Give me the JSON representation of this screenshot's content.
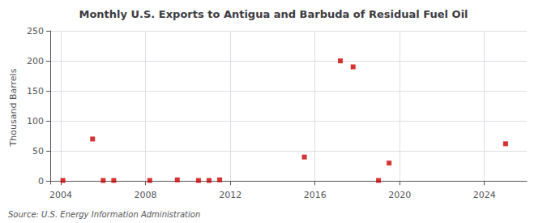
{
  "chart_data": {
    "type": "scatter",
    "title": "Monthly U.S. Exports to Antigua and Barbuda of Residual Fuel Oil",
    "ylabel": "Thousand Barrels",
    "annotation": "Source: U.S. Energy Information Administration",
    "x": [
      2004.1,
      2005.5,
      2006.0,
      2006.5,
      2008.2,
      2009.5,
      2010.5,
      2011.0,
      2011.5,
      2015.5,
      2017.2,
      2017.8,
      2019.0,
      2019.5,
      2025.0
    ],
    "values": [
      1,
      70,
      1,
      1,
      1,
      2,
      1,
      1,
      2,
      40,
      200,
      190,
      1,
      30,
      62
    ],
    "color": "#cc0000",
    "marker": "square",
    "xlim": [
      2003.5,
      2026
    ],
    "xticks": [
      2004,
      2008,
      2012,
      2016,
      2020,
      2024
    ],
    "ylim": [
      -5,
      250
    ],
    "yticks": [
      0,
      50,
      100,
      150,
      200,
      250
    ],
    "grid": true
  }
}
